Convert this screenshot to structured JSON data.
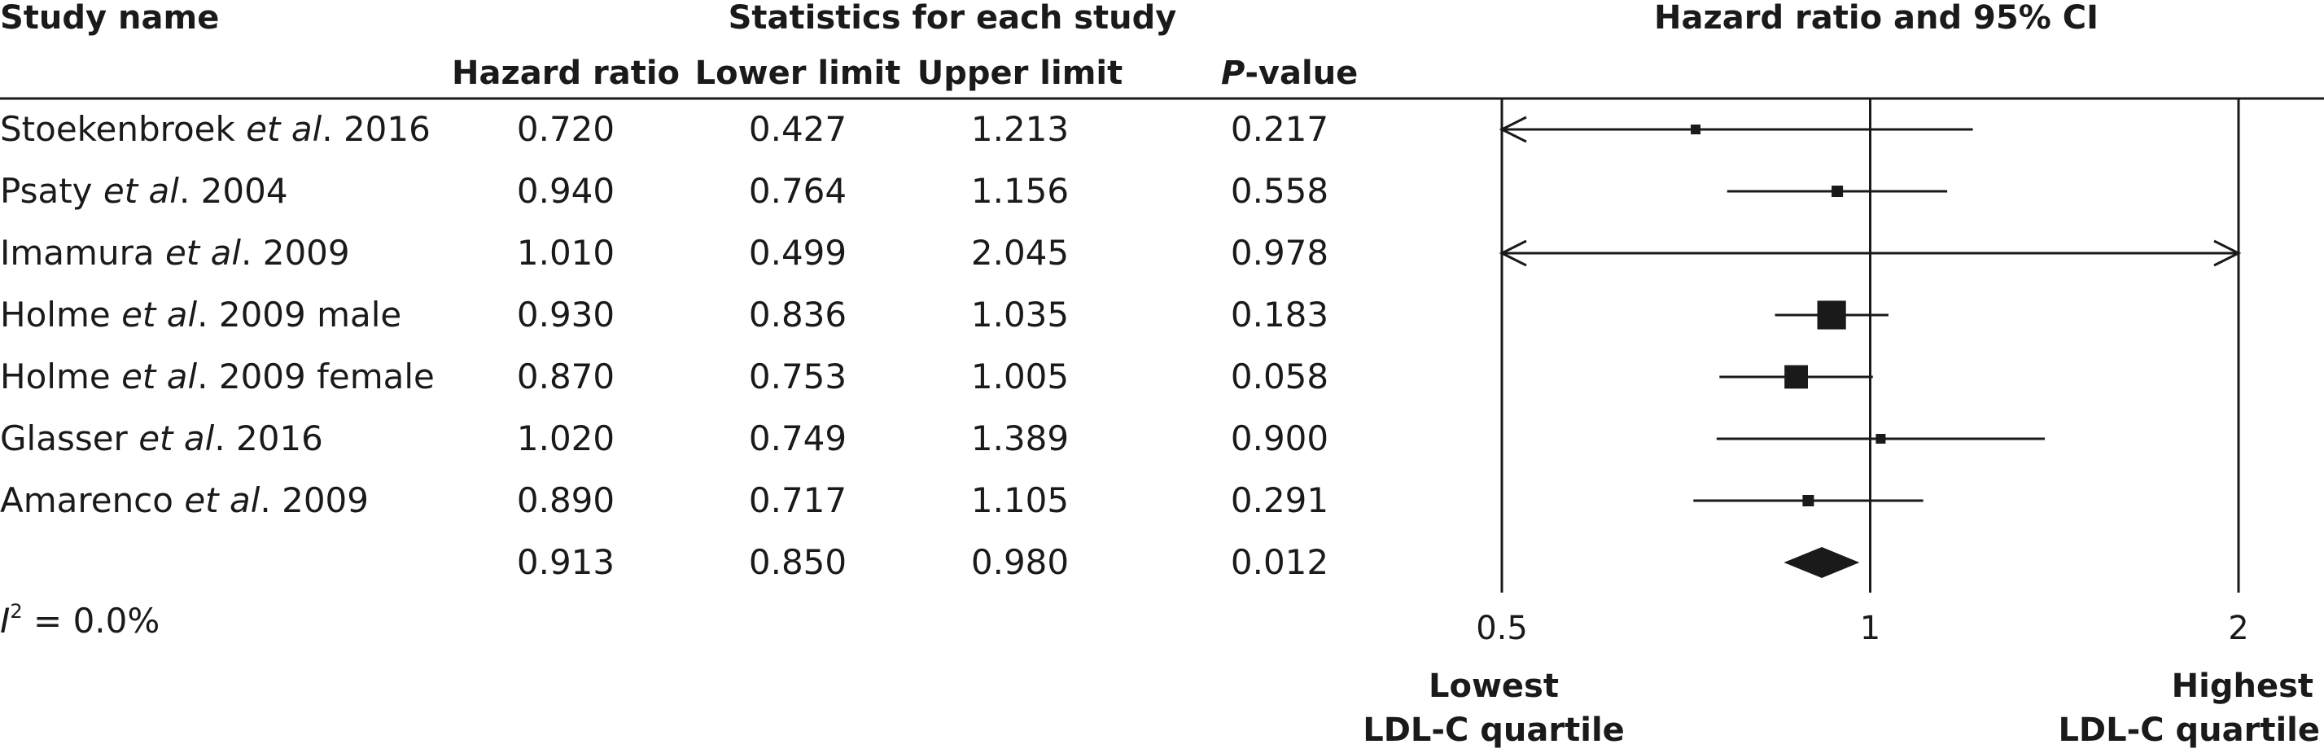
{
  "header": {
    "study_name": "Study name",
    "stats_group": "Statistics for each study",
    "plot_title": "Hazard ratio and 95% CI",
    "col_hr": "Hazard ratio",
    "col_lower": "Lower limit",
    "col_upper": "Upper limit",
    "col_p_prefix": "P",
    "col_p_suffix": "-value"
  },
  "studies": [
    {
      "author": "Stoekenbroek ",
      "etal": "et al",
      "rest": ". 2016",
      "hr": "0.720",
      "lower": "0.427",
      "upper": "1.213",
      "p": "0.217"
    },
    {
      "author": "Psaty ",
      "etal": "et al",
      "rest": ". 2004",
      "hr": "0.940",
      "lower": "0.764",
      "upper": "1.156",
      "p": "0.558"
    },
    {
      "author": "Imamura ",
      "etal": "et al",
      "rest": ". 2009",
      "hr": "1.010",
      "lower": "0.499",
      "upper": "2.045",
      "p": "0.978"
    },
    {
      "author": "Holme ",
      "etal": "et al",
      "rest": ". 2009 male",
      "hr": "0.930",
      "lower": "0.836",
      "upper": "1.035",
      "p": "0.183"
    },
    {
      "author": "Holme ",
      "etal": "et al",
      "rest": ". 2009 female",
      "hr": "0.870",
      "lower": "0.753",
      "upper": "1.005",
      "p": "0.058"
    },
    {
      "author": "Glasser ",
      "etal": "et al",
      "rest": ". 2016",
      "hr": "1.020",
      "lower": "0.749",
      "upper": "1.389",
      "p": "0.900"
    },
    {
      "author": "Amarenco ",
      "etal": "et al",
      "rest": ". 2009",
      "hr": "0.890",
      "lower": "0.717",
      "upper": "1.105",
      "p": "0.291"
    }
  ],
  "pooled": {
    "hr": "0.913",
    "lower": "0.850",
    "upper": "0.980",
    "p": "0.012"
  },
  "heterogeneity": {
    "symbol": "I",
    "power": "2",
    "value": " = 0.0%"
  },
  "footer": {
    "left_line1": "Lowest",
    "left_line2": "LDL-C quartile",
    "right_line1": "Highest",
    "right_line2": "LDL-C quartile"
  },
  "chart_data": {
    "type": "forest",
    "title": "Hazard ratio and 95% CI",
    "x_scale": "log",
    "xlim": [
      0.5,
      2
    ],
    "x_ticks": [
      "0.5",
      "1",
      "2"
    ],
    "reference_line": 1,
    "studies": [
      {
        "hr": 0.72,
        "lower": 0.427,
        "upper": 1.213,
        "weight": 1
      },
      {
        "hr": 0.94,
        "lower": 0.764,
        "upper": 1.156,
        "weight": 2
      },
      {
        "hr": 1.01,
        "lower": 0.499,
        "upper": 2.045,
        "weight": 0
      },
      {
        "hr": 0.93,
        "lower": 0.836,
        "upper": 1.035,
        "weight": 5
      },
      {
        "hr": 0.87,
        "lower": 0.753,
        "upper": 1.005,
        "weight": 4
      },
      {
        "hr": 1.02,
        "lower": 0.749,
        "upper": 1.389,
        "weight": 1
      },
      {
        "hr": 0.89,
        "lower": 0.717,
        "upper": 1.105,
        "weight": 2
      }
    ],
    "pooled": {
      "hr": 0.913,
      "lower": 0.85,
      "upper": 0.98
    }
  }
}
